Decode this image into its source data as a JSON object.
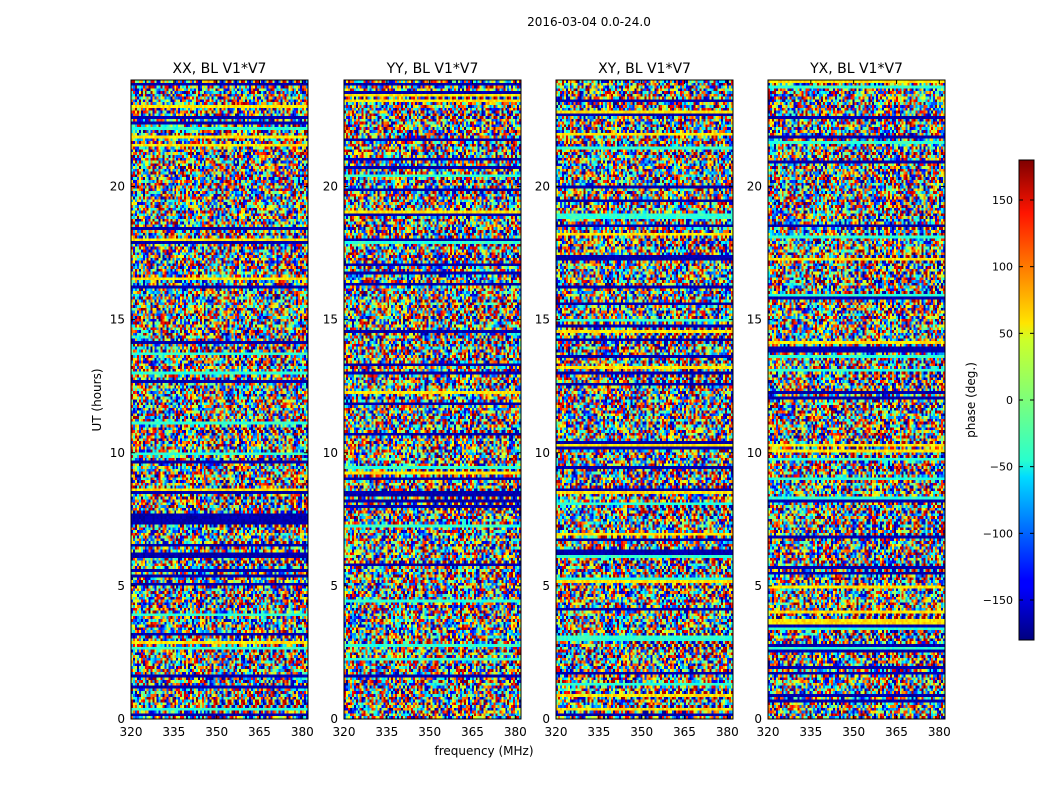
{
  "chart_data": {
    "type": "heatmap",
    "title": "2016-03-04 0.0-24.0",
    "xlabel": "frequency (MHz)",
    "ylabel": "UT (hours)",
    "xlim": [
      320,
      382
    ],
    "ylim": [
      0,
      24
    ],
    "xticks": [
      "320",
      "335",
      "350",
      "365",
      "380"
    ],
    "yticks": [
      "0",
      "5",
      "10",
      "15",
      "20"
    ],
    "panels": [
      {
        "title": "XX, BL V1*V7"
      },
      {
        "title": "YY, BL V1*V7"
      },
      {
        "title": "XY, BL V1*V7"
      },
      {
        "title": "YX, BL V1*V7"
      }
    ],
    "colorbar": {
      "label": "phase (deg.)",
      "range": [
        -180,
        180
      ],
      "ticks": [
        "150",
        "100",
        "50",
        "0",
        "−50",
        "−100",
        "−150"
      ],
      "colormap": "jet"
    }
  }
}
